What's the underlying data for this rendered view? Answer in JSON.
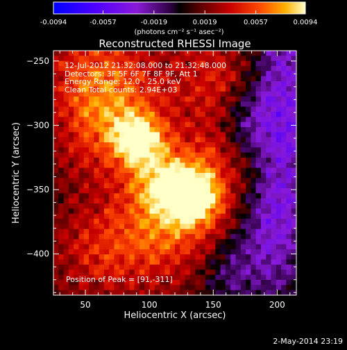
{
  "chart_data": {
    "type": "heatmap",
    "title": "Reconstructed RHESSI Image",
    "xlabel": "Heliocentric X (arcsec)",
    "ylabel": "Heliocentric Y (arcsec)",
    "xlim": [
      25,
      215
    ],
    "ylim": [
      -432,
      -242
    ],
    "x_ticks": [
      50,
      100,
      150,
      200
    ],
    "y_ticks": [
      -250,
      -300,
      -350,
      -400
    ],
    "colorbar": {
      "ticks": [
        "-0.0094",
        "-0.0057",
        "-0.0019",
        "0.0019",
        "0.0057",
        "0.0094"
      ],
      "unit_label": "(photons cm⁻² s⁻¹ asec⁻²)",
      "range": [
        -0.0094,
        0.0094
      ]
    },
    "annotations": [
      "12-Jul-2012 21:32:08.000 to 21:32:48.000",
      "Detectors: 3F 5F 6F 7F 8F 9F, Att 1",
      "Energy Range: 12.0 - 25.0 keV",
      "Clean     Total counts: 2.94E+03"
    ],
    "peak_label": "Position of Peak = [91,-311]",
    "sources": [
      {
        "x": 91,
        "y": -311,
        "value": 0.0094
      },
      {
        "x": 135,
        "y": -356,
        "value": 0.0088
      },
      {
        "x": 113,
        "y": -345,
        "value": 0.008
      }
    ],
    "footer": "2-May-2014 23:19"
  }
}
